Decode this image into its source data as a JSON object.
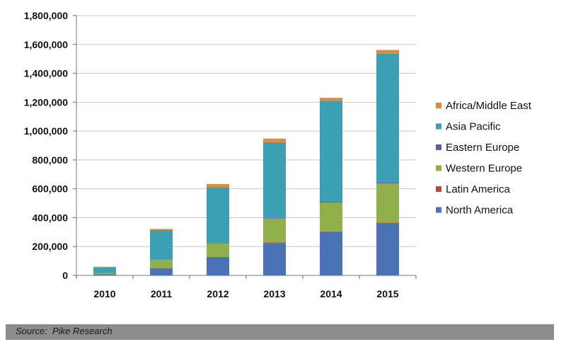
{
  "chart_data": {
    "type": "bar",
    "stacked": true,
    "categories": [
      "2010",
      "2011",
      "2012",
      "2013",
      "2014",
      "2015"
    ],
    "series": [
      {
        "name": "North America",
        "color": "#4a73b5",
        "values": [
          8000,
          50000,
          125000,
          225000,
          300000,
          360000
        ]
      },
      {
        "name": "Latin America",
        "color": "#b84a45",
        "values": [
          1000,
          2000,
          3000,
          4000,
          5000,
          6000
        ]
      },
      {
        "name": "Western Europe",
        "color": "#8fb04a",
        "values": [
          6000,
          55000,
          95000,
          165000,
          200000,
          270000
        ]
      },
      {
        "name": "Eastern Europe",
        "color": "#6c58a0",
        "values": [
          1000,
          2000,
          3000,
          4000,
          5000,
          6000
        ]
      },
      {
        "name": "Asia Pacific",
        "color": "#3ba0b4",
        "values": [
          40000,
          205000,
          385000,
          525000,
          700000,
          895000
        ]
      },
      {
        "name": "Africa/Middle East",
        "color": "#e08a3c",
        "values": [
          4000,
          8000,
          22000,
          25000,
          20000,
          25000
        ]
      }
    ],
    "ylim": [
      0,
      1800000
    ],
    "yticks": [
      0,
      200000,
      400000,
      600000,
      800000,
      1000000,
      1200000,
      1400000,
      1600000,
      1800000
    ],
    "ytick_labels": [
      "0",
      "200,000",
      "400,000",
      "600,000",
      "800,000",
      "1,000,000",
      "1,200,000",
      "1,400,000",
      "1,600,000",
      "1,800,000"
    ],
    "legend_order": [
      "Africa/Middle East",
      "Asia Pacific",
      "Eastern Europe",
      "Western Europe",
      "Latin America",
      "North America"
    ],
    "legend_position": "right",
    "grid": true
  },
  "source": "Source:  Pike Research"
}
